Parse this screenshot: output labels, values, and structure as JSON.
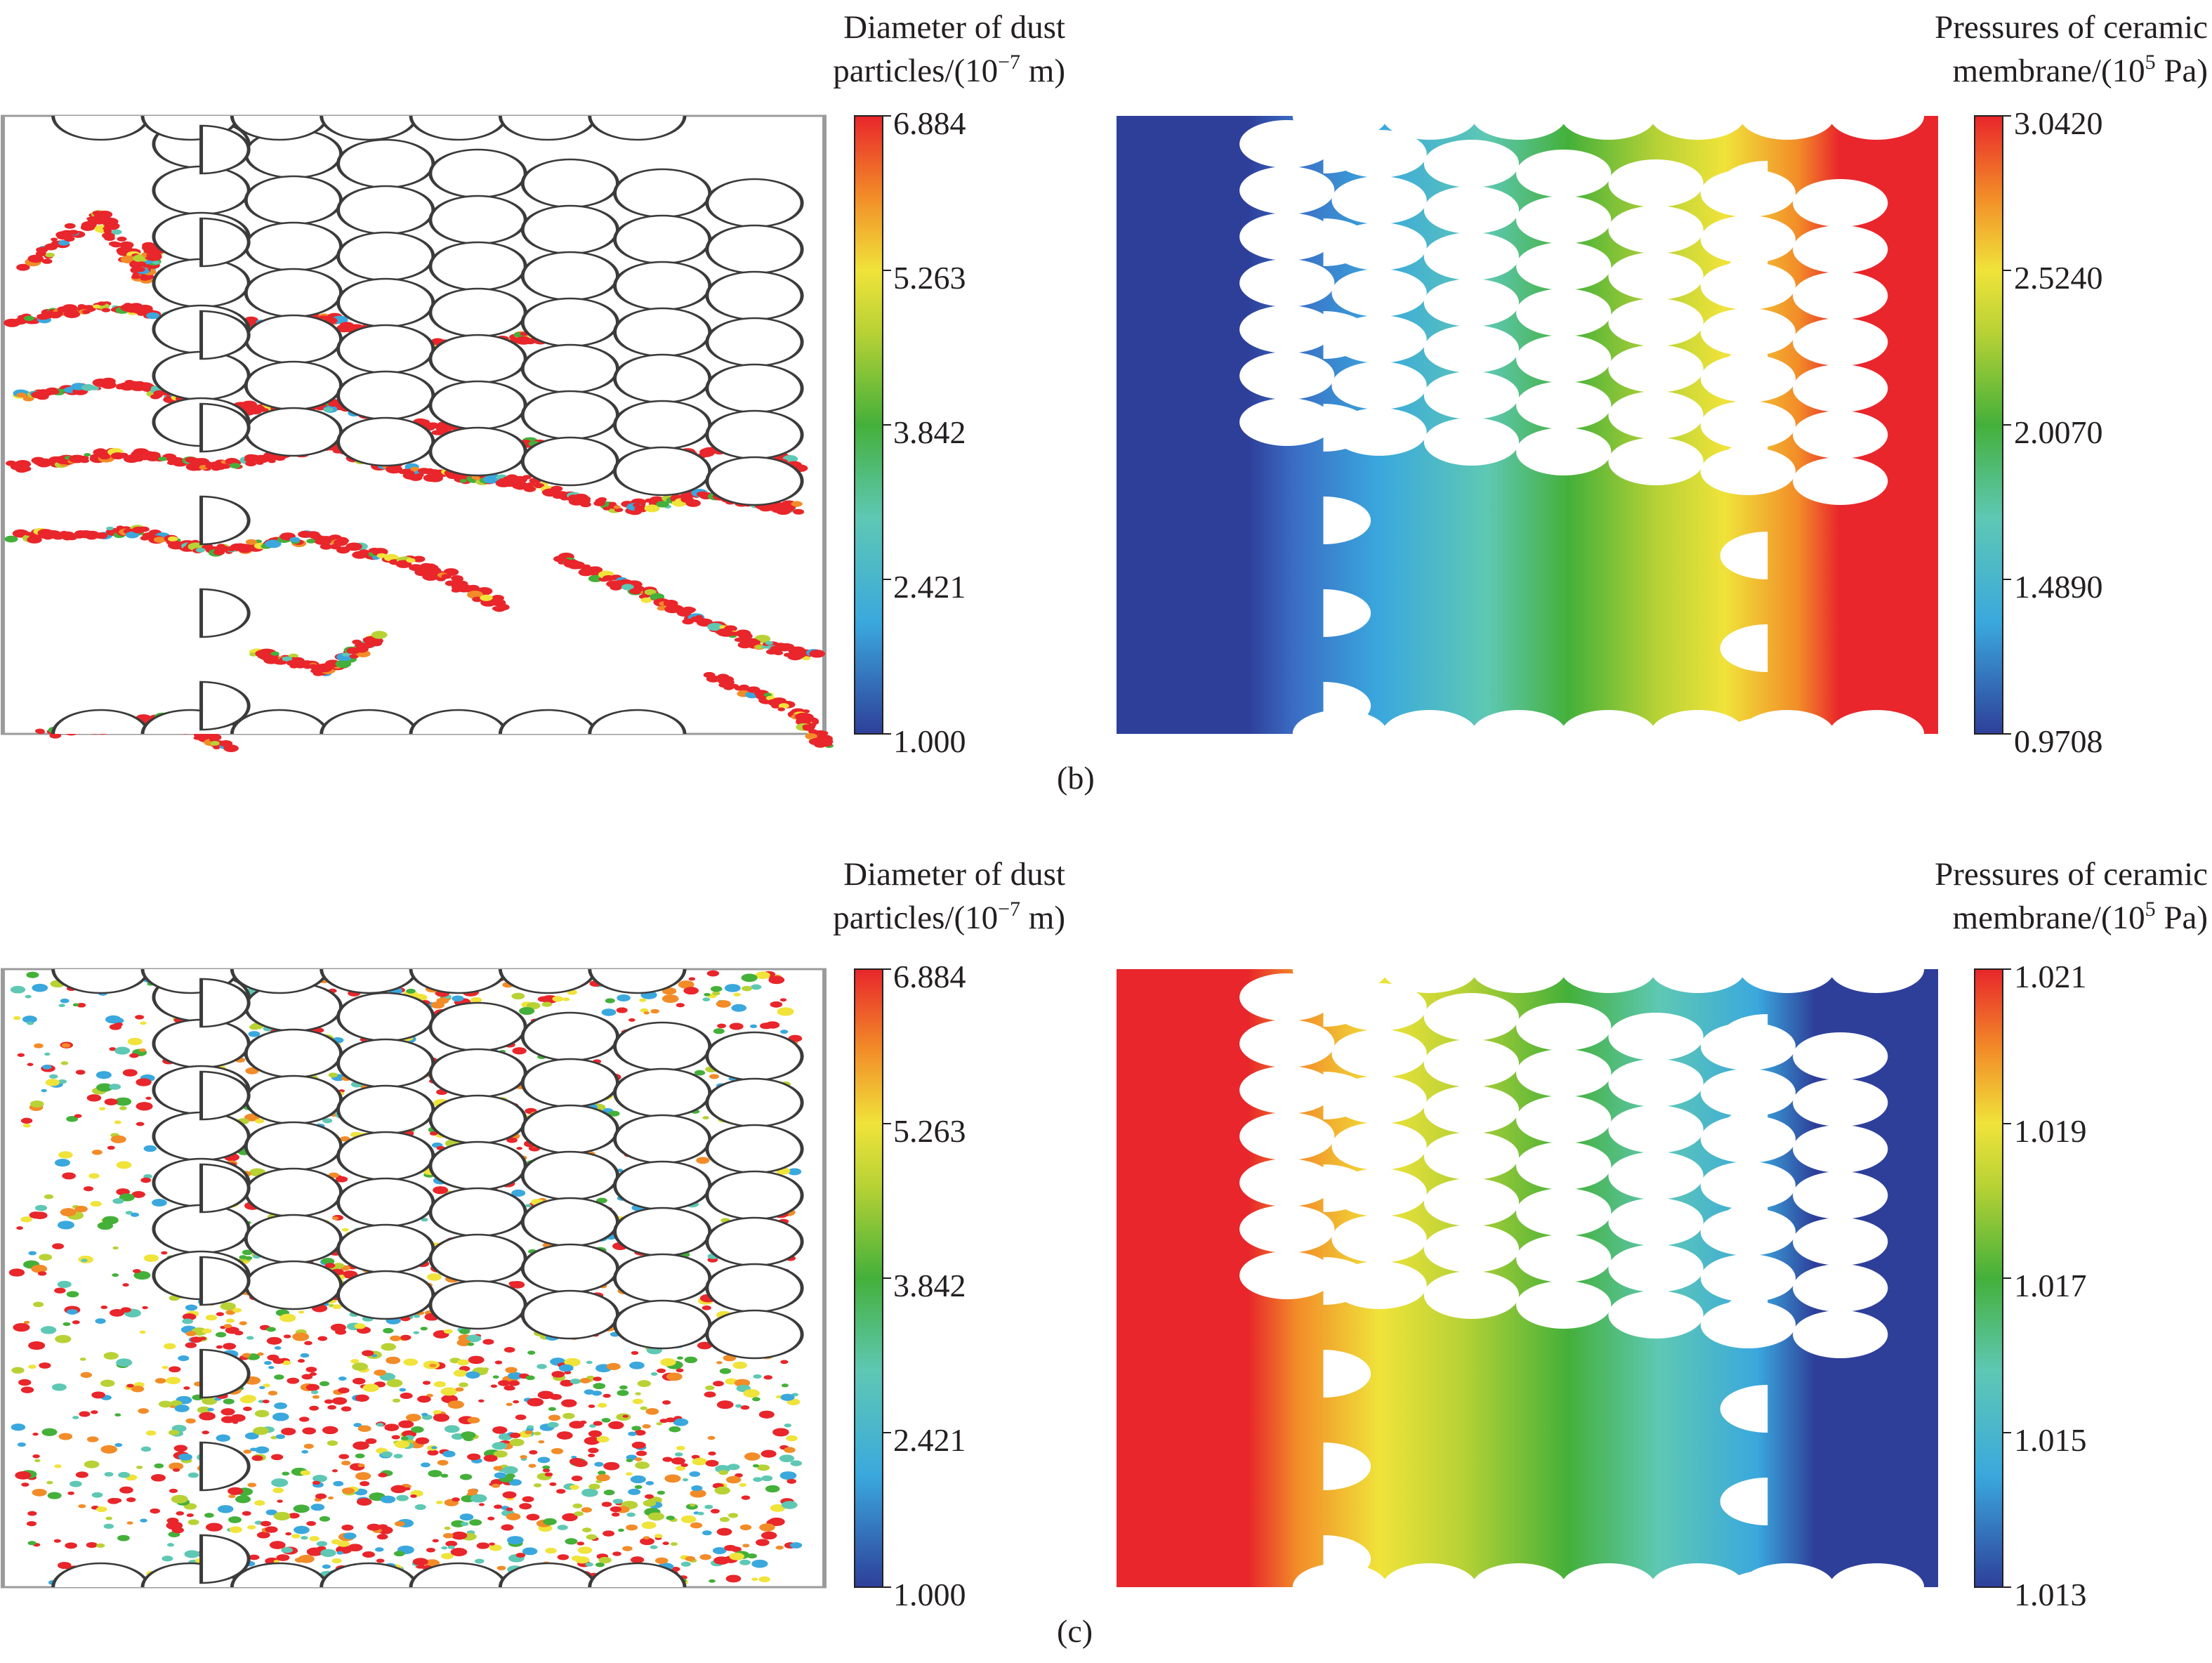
{
  "panels": [
    {
      "id": "b",
      "caption": "(b)",
      "dust": {
        "title_line1": "Diameter of dust",
        "title_line2_pre": "particles/(10",
        "title_line2_sup": "−7",
        "title_line2_post": " m)",
        "ticks": [
          "6.884",
          "5.263",
          "3.842",
          "2.421",
          "1.000"
        ]
      },
      "pressure": {
        "title_line1": "Pressures of ceramic",
        "title_line2_pre": "membrane/(10",
        "title_line2_sup": "5",
        "title_line2_post": " Pa)",
        "ticks": [
          "3.0420",
          "2.5240",
          "2.0070",
          "1.4890",
          "0.9708"
        ],
        "direction": "low-left-to-high-right"
      }
    },
    {
      "id": "c",
      "caption": "(c)",
      "dust": {
        "title_line1": "Diameter of dust",
        "title_line2_pre": "particles/(10",
        "title_line2_sup": "−7",
        "title_line2_post": " m)",
        "ticks": [
          "6.884",
          "5.263",
          "3.842",
          "2.421",
          "1.000"
        ]
      },
      "pressure": {
        "title_line1": "Pressures of ceramic",
        "title_line2_pre": "membrane/(10",
        "title_line2_sup": "5",
        "title_line2_post": " Pa)",
        "ticks": [
          "1.021",
          "1.019",
          "1.017",
          "1.015",
          "1.013"
        ],
        "direction": "high-left-to-low-right"
      }
    }
  ],
  "colormap": [
    "#2e3f9a",
    "#3aa8dd",
    "#5ec8b4",
    "#44b03a",
    "#b8d235",
    "#f0e33a",
    "#f28c28",
    "#e8262b"
  ]
}
